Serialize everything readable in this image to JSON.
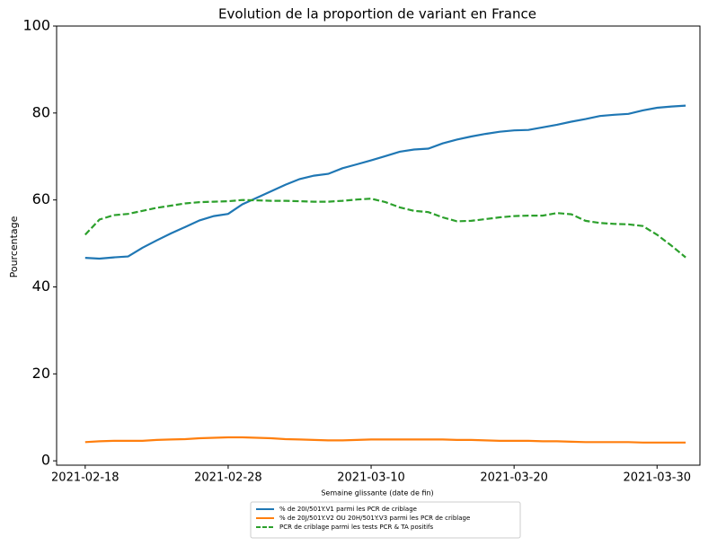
{
  "chart_data": {
    "type": "line",
    "title": "Evolution de la proportion de variant en France",
    "x_label": "Semaine glissante (date de fin)",
    "y_label": "Pourcentage",
    "x": [
      "2021-02-18",
      "2021-02-19",
      "2021-02-20",
      "2021-02-21",
      "2021-02-22",
      "2021-02-23",
      "2021-02-24",
      "2021-02-25",
      "2021-02-26",
      "2021-02-27",
      "2021-02-28",
      "2021-03-01",
      "2021-03-02",
      "2021-03-03",
      "2021-03-04",
      "2021-03-05",
      "2021-03-06",
      "2021-03-07",
      "2021-03-08",
      "2021-03-09",
      "2021-03-10",
      "2021-03-11",
      "2021-03-12",
      "2021-03-13",
      "2021-03-14",
      "2021-03-15",
      "2021-03-16",
      "2021-03-17",
      "2021-03-18",
      "2021-03-19",
      "2021-03-20",
      "2021-03-21",
      "2021-03-22",
      "2021-03-23",
      "2021-03-24",
      "2021-03-25",
      "2021-03-26",
      "2021-03-27",
      "2021-03-28",
      "2021-03-29",
      "2021-03-30",
      "2021-03-31",
      "2021-04-01"
    ],
    "series": [
      {
        "name": "% de 20I/501Y.V1 parmi les PCR de criblage",
        "color": "#1f77b4",
        "dash": "solid",
        "values": [
          46.7,
          46.5,
          46.8,
          47.0,
          49.0,
          50.7,
          52.3,
          53.8,
          55.3,
          56.3,
          56.8,
          59.0,
          60.5,
          62.0,
          63.5,
          64.8,
          65.6,
          66.0,
          67.3,
          68.2,
          69.1,
          70.1,
          71.1,
          71.6,
          71.8,
          73.0,
          73.9,
          74.6,
          75.2,
          75.7,
          76.0,
          76.1,
          76.7,
          77.3,
          78.0,
          78.6,
          79.3,
          79.6,
          79.8,
          80.6,
          81.2,
          81.5,
          81.7
        ]
      },
      {
        "name": "% de 20J/501Y.V2 OU 20H/501Y.V3 parmi les PCR de criblage",
        "color": "#ff7f0e",
        "dash": "solid",
        "values": [
          4.3,
          4.5,
          4.6,
          4.6,
          4.6,
          4.8,
          4.9,
          5.0,
          5.2,
          5.3,
          5.4,
          5.4,
          5.3,
          5.2,
          5.0,
          4.9,
          4.8,
          4.7,
          4.7,
          4.8,
          4.9,
          4.9,
          4.9,
          4.9,
          4.9,
          4.9,
          4.8,
          4.8,
          4.7,
          4.6,
          4.6,
          4.6,
          4.5,
          4.5,
          4.4,
          4.3,
          4.3,
          4.3,
          4.3,
          4.2,
          4.2,
          4.2,
          4.2
        ]
      },
      {
        "name": "PCR de criblage parmi les tests PCR & TA positifs",
        "color": "#2ca02c",
        "dash": "dashed",
        "values": [
          52.0,
          55.5,
          56.5,
          56.8,
          57.5,
          58.2,
          58.7,
          59.2,
          59.5,
          59.6,
          59.7,
          60.0,
          59.9,
          59.8,
          59.8,
          59.7,
          59.6,
          59.6,
          59.8,
          60.1,
          60.3,
          59.5,
          58.3,
          57.5,
          57.2,
          56.0,
          55.1,
          55.2,
          55.6,
          56.0,
          56.3,
          56.4,
          56.4,
          57.0,
          56.7,
          55.2,
          54.7,
          54.5,
          54.4,
          54.0,
          52.0,
          49.5,
          46.8
        ]
      }
    ],
    "xlim": [
      "2021-02-16",
      "2021-04-02"
    ],
    "xticks": [
      "2021-02-18",
      "2021-02-28",
      "2021-03-10",
      "2021-03-20",
      "2021-03-30"
    ],
    "ylim": [
      -1,
      100
    ],
    "yticks": [
      0,
      20,
      40,
      60,
      80,
      100
    ],
    "legend": "lower center"
  }
}
